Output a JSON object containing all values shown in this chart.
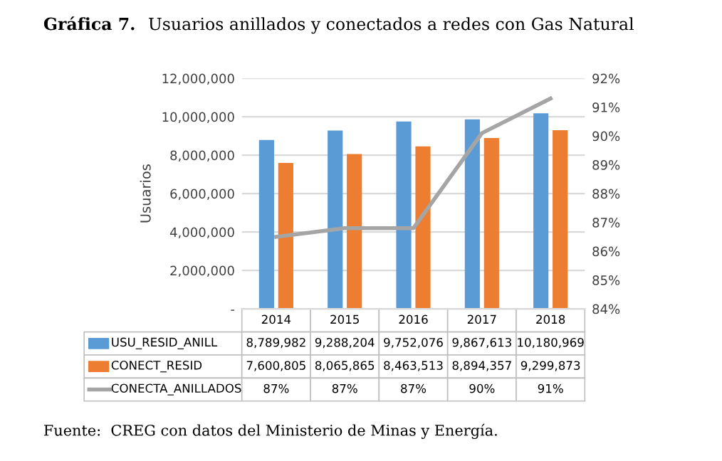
{
  "chart_data": {
    "type": "bar",
    "title": "Gráfica 7. Usuarios anillados y conectados a redes con Gas Natural",
    "categories": [
      "2014",
      "2015",
      "2016",
      "2017",
      "2018"
    ],
    "series": [
      {
        "name": "USU_RESID_ANILL",
        "color": "#5b9bd5",
        "values": [
          8789982,
          9288204,
          9752076,
          9867613,
          10180969
        ],
        "value_labels": [
          "8,789,982",
          "9,288,204",
          "9,752,076",
          "9,867,613",
          "10,180,969"
        ]
      },
      {
        "name": "CONECT_RESID",
        "color": "#ed7d31",
        "values": [
          7600805,
          8065865,
          8463513,
          8894357,
          9299873
        ],
        "value_labels": [
          "7,600,805",
          "8,065,865",
          "8,463,513",
          "8,894,357",
          "9,299,873"
        ]
      },
      {
        "name": "CONECTA_ANILLADOS",
        "type": "line",
        "axis": "y2",
        "color": "#a5a5a5",
        "values": [
          86.5,
          86.8,
          86.8,
          90.1,
          91.3
        ],
        "value_labels": [
          "87%",
          "87%",
          "87%",
          "90%",
          "91%"
        ]
      }
    ],
    "ylabel": "Usuarios",
    "ylim": [
      0,
      12000000
    ],
    "yticks": [
      {
        "value": 0,
        "label": "-"
      },
      {
        "value": 2000000,
        "label": "2,000,000"
      },
      {
        "value": 4000000,
        "label": "4,000,000"
      },
      {
        "value": 6000000,
        "label": "6,000,000"
      },
      {
        "value": 8000000,
        "label": "8,000,000"
      },
      {
        "value": 10000000,
        "label": "10,000,000"
      },
      {
        "value": 12000000,
        "label": "12,000,000"
      }
    ],
    "y2lim": [
      84,
      92
    ],
    "y2ticks": [
      {
        "value": 84,
        "label": "84%"
      },
      {
        "value": 85,
        "label": "85%"
      },
      {
        "value": 86,
        "label": "86%"
      },
      {
        "value": 87,
        "label": "87%"
      },
      {
        "value": 88,
        "label": "88%"
      },
      {
        "value": 89,
        "label": "89%"
      },
      {
        "value": 90,
        "label": "90%"
      },
      {
        "value": 91,
        "label": "91%"
      },
      {
        "value": 92,
        "label": "92%"
      }
    ],
    "grid": "y",
    "legend": "bottom left",
    "marker": "none",
    "annotations": [
      "Fuente:  CREG con datos del Ministerio de Minas y Energía."
    ]
  }
}
